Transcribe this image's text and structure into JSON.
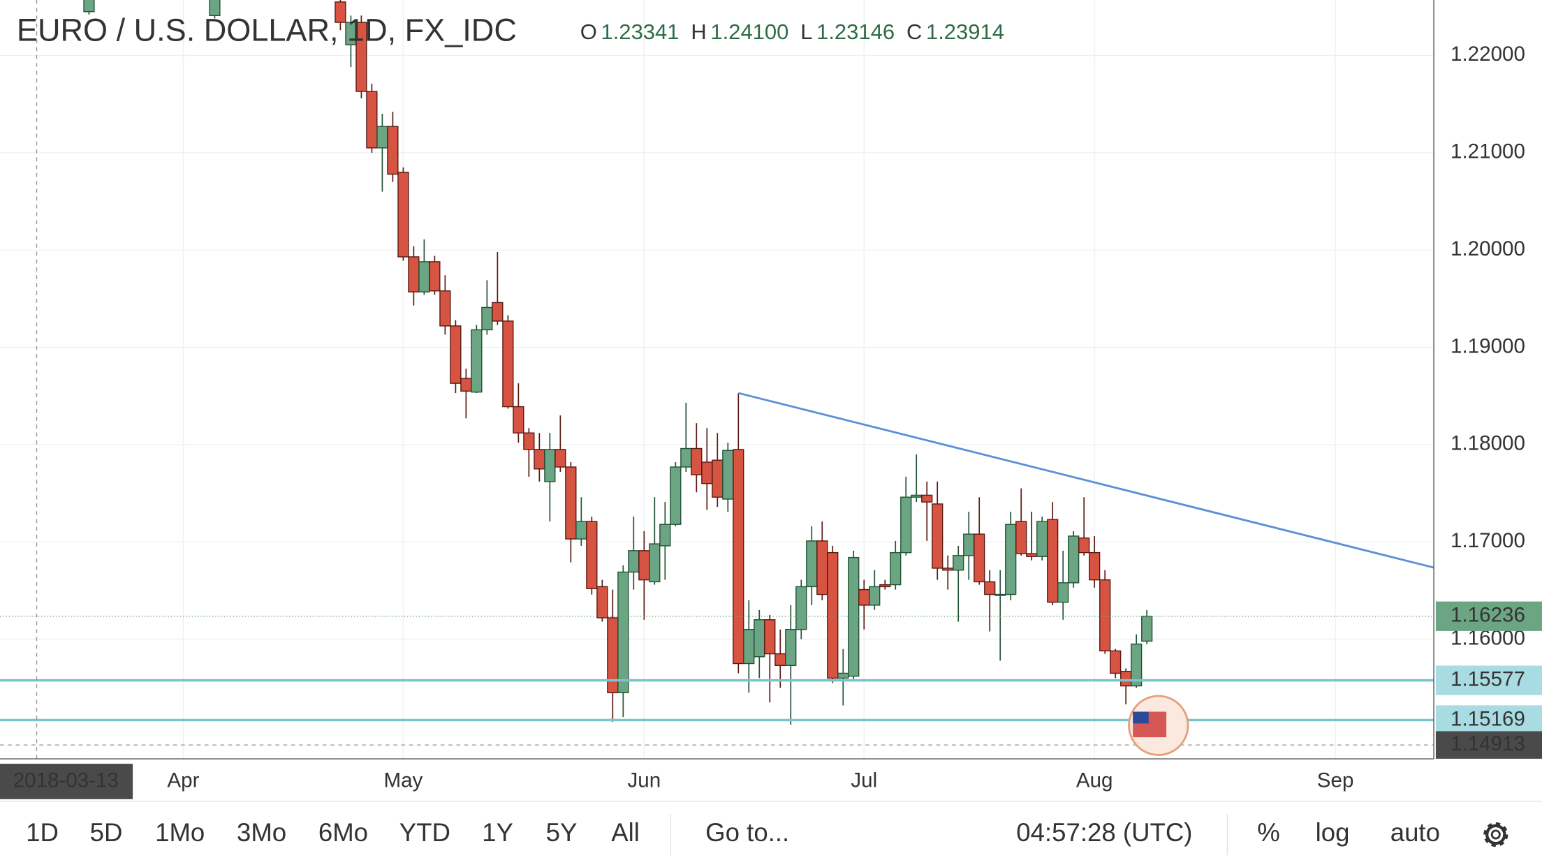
{
  "chart_data": {
    "type": "candlestick",
    "title": "EURO / U.S. DOLLAR, 1D, FX_IDC",
    "ohlc_readout": [
      "O",
      "1.23341",
      "H",
      "1.24100",
      "L",
      "1.23146",
      "C",
      "1.23914"
    ],
    "x": [
      5,
      17,
      29,
      30,
      31,
      32,
      33,
      34,
      35,
      36,
      37,
      38,
      39,
      40,
      41,
      42,
      43,
      44,
      45,
      46,
      47,
      48,
      49,
      50,
      51,
      52,
      53,
      54,
      55,
      56,
      57,
      58,
      59,
      60,
      61,
      62,
      63,
      64,
      65,
      66,
      67,
      68,
      69,
      70,
      71,
      72,
      73,
      74,
      75,
      76,
      77,
      78,
      79,
      80,
      81,
      82,
      83,
      84,
      85,
      86,
      87,
      88,
      89,
      90,
      91,
      92,
      93,
      94,
      95,
      96,
      97,
      98,
      99,
      100,
      101,
      102,
      103,
      104,
      105,
      106
    ],
    "open": [
      1.2245,
      1.2241,
      1.2255,
      1.2211,
      1.2234,
      1.2163,
      1.2105,
      1.2127,
      1.208,
      1.1993,
      1.1957,
      1.1988,
      1.1958,
      1.1922,
      1.1868,
      1.1854,
      1.1918,
      1.1946,
      1.1927,
      1.1839,
      1.1812,
      1.1795,
      1.1762,
      1.1795,
      1.1777,
      1.1703,
      1.1721,
      1.1654,
      1.1622,
      1.1545,
      1.1669,
      1.1691,
      1.1659,
      1.1696,
      1.1718,
      1.1777,
      1.1796,
      1.1782,
      1.1784,
      1.1744,
      1.1795,
      1.1575,
      1.1582,
      1.162,
      1.1585,
      1.1573,
      1.161,
      1.1654,
      1.1701,
      1.1689,
      1.156,
      1.1562,
      1.1651,
      1.1635,
      1.1656,
      1.1656,
      1.1689,
      1.1746,
      1.1748,
      1.1739,
      1.1673,
      1.1671,
      1.1686,
      1.1708,
      1.1659,
      1.1646,
      1.1646,
      1.1721,
      1.1688,
      1.1685,
      1.1723,
      1.1638,
      1.1658,
      1.1704,
      1.1689,
      1.1661,
      1.1588,
      1.1567,
      1.1552,
      1.1598
    ],
    "high": [
      1.228,
      1.2275,
      1.2262,
      1.2241,
      1.2241,
      1.2171,
      1.214,
      1.2142,
      1.2085,
      1.2004,
      1.2011,
      1.1994,
      1.1974,
      1.1928,
      1.1878,
      1.1923,
      1.1969,
      1.1998,
      1.1933,
      1.1863,
      1.1817,
      1.1812,
      1.1812,
      1.183,
      1.1782,
      1.1746,
      1.1726,
      1.1661,
      1.1651,
      1.1676,
      1.1726,
      1.1711,
      1.1746,
      1.1741,
      1.1782,
      1.1843,
      1.1822,
      1.1817,
      1.1812,
      1.1802,
      1.1853,
      1.164,
      1.163,
      1.1625,
      1.161,
      1.1635,
      1.1661,
      1.1716,
      1.1721,
      1.1696,
      1.159,
      1.1691,
      1.1661,
      1.1671,
      1.1661,
      1.1701,
      1.1767,
      1.179,
      1.1762,
      1.1762,
      1.1686,
      1.1696,
      1.1731,
      1.1746,
      1.1671,
      1.1671,
      1.1731,
      1.1755,
      1.1731,
      1.1726,
      1.1741,
      1.1691,
      1.1711,
      1.1746,
      1.1706,
      1.1671,
      1.159,
      1.157,
      1.1605,
      1.163
    ],
    "low": [
      1.2242,
      1.2238,
      1.2226,
      1.2188,
      1.2156,
      1.21,
      1.206,
      1.207,
      1.1989,
      1.1943,
      1.1954,
      1.1954,
      1.1913,
      1.1853,
      1.1827,
      1.1853,
      1.1913,
      1.1923,
      1.1837,
      1.1802,
      1.1767,
      1.1762,
      1.1721,
      1.1772,
      1.1679,
      1.1696,
      1.1646,
      1.1618,
      1.1515,
      1.152,
      1.1651,
      1.162,
      1.1656,
      1.1661,
      1.1716,
      1.1772,
      1.1751,
      1.1733,
      1.1736,
      1.1731,
      1.1565,
      1.1545,
      1.156,
      1.1535,
      1.155,
      1.1512,
      1.16,
      1.1635,
      1.164,
      1.1555,
      1.1532,
      1.1558,
      1.161,
      1.163,
      1.1651,
      1.1651,
      1.1686,
      1.1741,
      1.1701,
      1.1661,
      1.1651,
      1.1618,
      1.1661,
      1.1656,
      1.1608,
      1.1578,
      1.164,
      1.1686,
      1.1681,
      1.1681,
      1.1635,
      1.162,
      1.1653,
      1.1686,
      1.1653,
      1.1585,
      1.156,
      1.1533,
      1.155,
      1.1595
    ],
    "close": [
      1.2265,
      1.2262,
      1.2234,
      1.2234,
      1.2163,
      1.2105,
      1.2127,
      1.2078,
      1.1993,
      1.1957,
      1.1988,
      1.1958,
      1.1922,
      1.1863,
      1.1855,
      1.1918,
      1.1941,
      1.1927,
      1.1839,
      1.1812,
      1.1795,
      1.1775,
      1.1795,
      1.1777,
      1.1703,
      1.1721,
      1.1652,
      1.1622,
      1.1545,
      1.1669,
      1.1691,
      1.1661,
      1.1698,
      1.1718,
      1.1777,
      1.1796,
      1.1769,
      1.176,
      1.1746,
      1.1794,
      1.1575,
      1.161,
      1.162,
      1.1585,
      1.1573,
      1.161,
      1.1654,
      1.1701,
      1.1646,
      1.156,
      1.1565,
      1.1684,
      1.1635,
      1.1654,
      1.1654,
      1.1689,
      1.1746,
      1.1748,
      1.1741,
      1.1673,
      1.1671,
      1.1686,
      1.1708,
      1.1659,
      1.1646,
      1.1646,
      1.1718,
      1.1688,
      1.1685,
      1.1721,
      1.1638,
      1.1658,
      1.1706,
      1.1689,
      1.1661,
      1.1588,
      1.1565,
      1.1552,
      1.1595,
      1.16236
    ],
    "up_color": "#6ba583",
    "up_border": "#225437",
    "down_color": "#d75442",
    "down_border": "#5b1a13",
    "xlim": [
      -3.5,
      133.4
    ],
    "xticks": [
      {
        "value": 14,
        "label": "Apr"
      },
      {
        "value": 35,
        "label": "May"
      },
      {
        "value": 58,
        "label": "Jun"
      },
      {
        "value": 79,
        "label": "Jul"
      },
      {
        "value": 101,
        "label": "Aug"
      },
      {
        "value": 124,
        "label": "Sep"
      }
    ],
    "ylim": [
      1.1477,
      1.2257
    ],
    "yticks": [
      {
        "value": 1.22,
        "label": "1.22000"
      },
      {
        "value": 1.21,
        "label": "1.21000"
      },
      {
        "value": 1.2,
        "label": "1.20000"
      },
      {
        "value": 1.19,
        "label": "1.19000"
      },
      {
        "value": 1.18,
        "label": "1.18000"
      },
      {
        "value": 1.17,
        "label": "1.17000"
      },
      {
        "value": 1.16,
        "label": "1.16000"
      }
    ],
    "grid": true,
    "trendline": {
      "x": [
        67,
        134
      ],
      "y": [
        1.1853,
        1.1672
      ],
      "color": "#5b8fd6"
    },
    "hlines": [
      1.15577,
      1.15169
    ],
    "hline_color": "#79c5cc",
    "crosshair": {
      "x": 0,
      "date": "2018-03-13",
      "price": 1.14913
    }
  },
  "toolbar": {
    "ranges": [
      "1D",
      "5D",
      "1Mo",
      "3Mo",
      "6Mo",
      "YTD",
      "1Y",
      "5Y",
      "All"
    ],
    "goto": "Go to...",
    "clock": "04:57:28 (UTC)",
    "options": [
      "%",
      "log",
      "auto"
    ]
  }
}
